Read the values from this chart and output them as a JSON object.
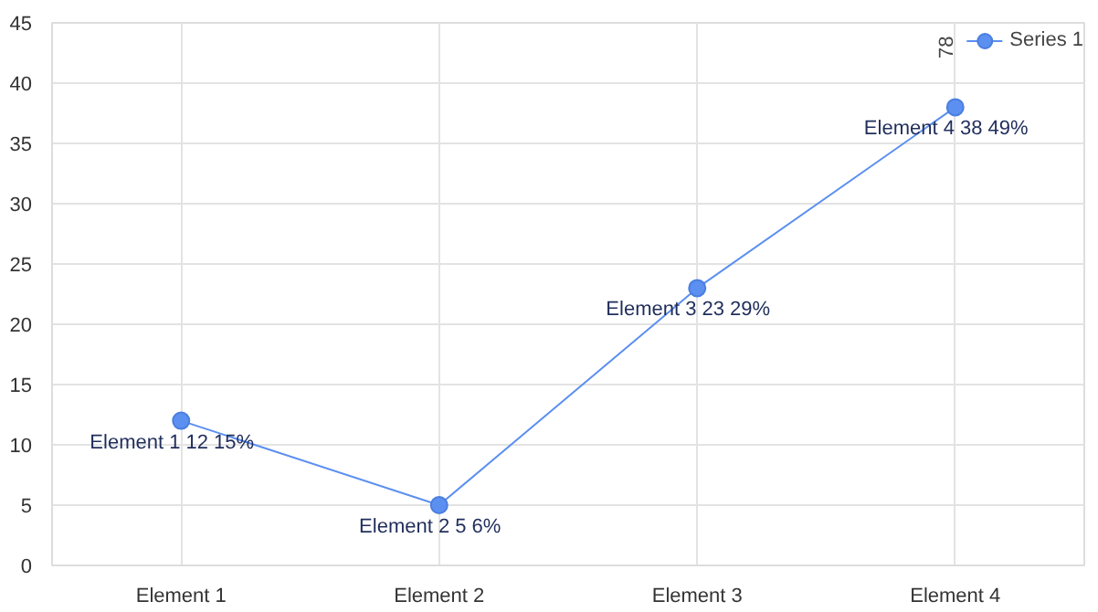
{
  "chart_data": {
    "type": "line",
    "categories": [
      "Element 1",
      "Element 2",
      "Element 3",
      "Element 4"
    ],
    "series": [
      {
        "name": "Series 1",
        "color": "#5b8ff0",
        "values": [
          12,
          5,
          23,
          38
        ],
        "value_labels": [
          "Element 1 12 15%",
          "Element 2 5 6%",
          "Element 3 23 29%",
          "Element 4 38 49%"
        ]
      }
    ],
    "ylim": [
      0,
      45
    ],
    "yticks": [
      0,
      5,
      10,
      15,
      20,
      25,
      30,
      35,
      40,
      45
    ],
    "grid": true,
    "legend": "top right",
    "legend_title": "78",
    "marker": "circle",
    "line_style": "solid"
  }
}
